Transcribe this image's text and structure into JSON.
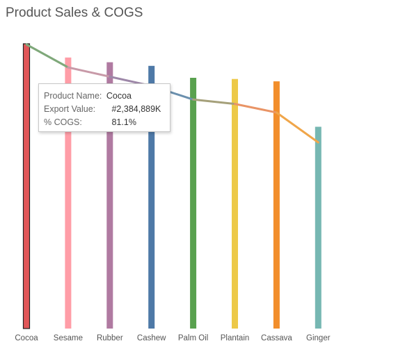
{
  "title": "Product Sales & COGS",
  "chart_data": {
    "type": "bar",
    "categories": [
      "Cocoa",
      "Sesame",
      "Rubber",
      "Cashew",
      "Palm Oil",
      "Plantain",
      "Cassava",
      "Ginger"
    ],
    "series": [
      {
        "values": [
          2384889,
          2270000,
          2230000,
          2200000,
          2100000,
          2090000,
          2070000,
          1690000
        ]
      },
      {
        "values": [
          81.1,
          74.2,
          71.4,
          68.6,
          64.5,
          63.2,
          60.6,
          51.6
        ]
      }
    ],
    "colors": [
      "#e15759",
      "#ff9da7",
      "#b07aa1",
      "#4e79a7",
      "#59a14f",
      "#edc948",
      "#f28e2b",
      "#76b7b2"
    ],
    "line_colors": [
      "#7fa87a",
      "#c89aa8",
      "#9d87a8",
      "#6b90ae",
      "#a5a07a",
      "#e99466",
      "#f0a64a"
    ]
  },
  "tooltip": {
    "product_label": "Product Name:",
    "product_value": "Cocoa",
    "export_label": "Export Value:",
    "export_value": "#2,384,889K",
    "cogs_label": "% COGS:",
    "cogs_value": "81.1%"
  }
}
